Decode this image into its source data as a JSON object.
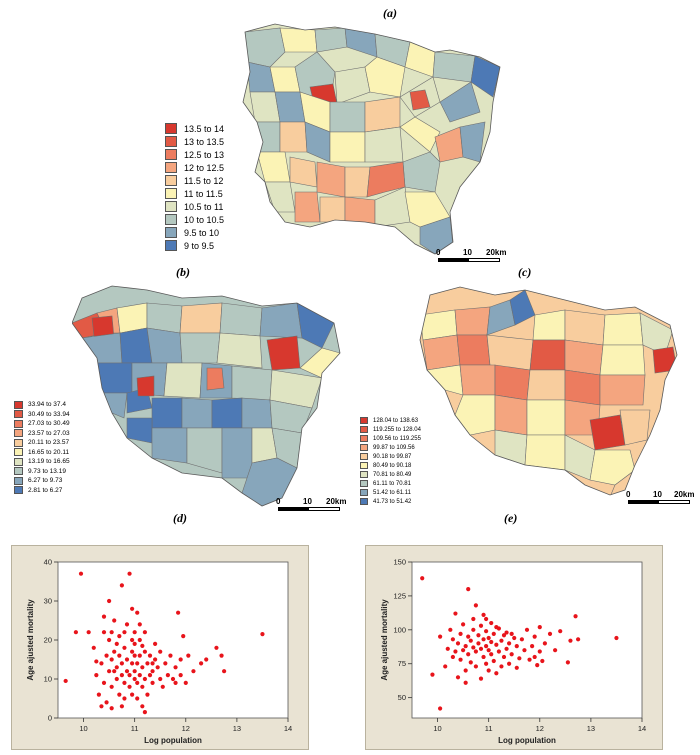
{
  "panels": [
    {
      "id": "a",
      "label": "(a)"
    },
    {
      "id": "b",
      "label": "(b)"
    },
    {
      "id": "c",
      "label": "(c)"
    },
    {
      "id": "d",
      "label": "(d)"
    },
    {
      "id": "e",
      "label": "(e)"
    }
  ],
  "maps": [
    {
      "id": "a",
      "legend": {
        "classes": [
          {
            "label": "13.5 to 14",
            "color": "#d7382e"
          },
          {
            "label": "13 to 13.5",
            "color": "#e25a45"
          },
          {
            "label": "12.5 to 13",
            "color": "#ec7c5f"
          },
          {
            "label": "12 to 12.5",
            "color": "#f4a57f"
          },
          {
            "label": "11.5 to 12",
            "color": "#f8cd9e"
          },
          {
            "label": "11 to 11.5",
            "color": "#fbf3b5"
          },
          {
            "label": "10.5 to 11",
            "color": "#dfe4c2"
          },
          {
            "label": "10 to 10.5",
            "color": "#b4c8c0"
          },
          {
            "label": "9.5 to 10",
            "color": "#87a6bb"
          },
          {
            "label": "9 to 9.5",
            "color": "#4d79b5"
          }
        ]
      },
      "scalebar": {
        "ticks": [
          "0",
          "10",
          "20km"
        ]
      }
    },
    {
      "id": "b",
      "legend": {
        "classes": [
          {
            "label": "33.94 to 37.4",
            "color": "#d7382e"
          },
          {
            "label": "30.49 to 33.94",
            "color": "#e25a45"
          },
          {
            "label": "27.03 to 30.49",
            "color": "#ec7c5f"
          },
          {
            "label": "23.57 to 27.03",
            "color": "#f4a57f"
          },
          {
            "label": "20.11 to 23.57",
            "color": "#f8cd9e"
          },
          {
            "label": "16.65 to 20.11",
            "color": "#fbf3b5"
          },
          {
            "label": "13.19 to 16.65",
            "color": "#dfe4c2"
          },
          {
            "label": "9.73 to 13.19",
            "color": "#b4c8c0"
          },
          {
            "label": "6.27 to 9.73",
            "color": "#87a6bb"
          },
          {
            "label": "2.81 to 6.27",
            "color": "#4d79b5"
          }
        ]
      },
      "scalebar": {
        "ticks": [
          "0",
          "10",
          "20km"
        ]
      }
    },
    {
      "id": "c",
      "legend": {
        "classes": [
          {
            "label": "128.04 to 138.63",
            "color": "#d7382e"
          },
          {
            "label": "119.255 to 128.04",
            "color": "#e25a45"
          },
          {
            "label": "109.56 to 119.255",
            "color": "#ec7c5f"
          },
          {
            "label": "99.87 to 109.56",
            "color": "#f4a57f"
          },
          {
            "label": "90.18 to 99.87",
            "color": "#f8cd9e"
          },
          {
            "label": "80.49 to 90.18",
            "color": "#fbf3b5"
          },
          {
            "label": "70.81 to 80.49",
            "color": "#dfe4c2"
          },
          {
            "label": "61.11 to 70.81",
            "color": "#b4c8c0"
          },
          {
            "label": "51.42 to 61.11",
            "color": "#87a6bb"
          },
          {
            "label": "41.73 to 51.42",
            "color": "#4d79b5"
          }
        ]
      },
      "scalebar": {
        "ticks": [
          "0",
          "10",
          "20km"
        ]
      }
    }
  ],
  "chart_data": [
    {
      "id": "d",
      "type": "scatter",
      "title": "",
      "xlabel": "Log population",
      "ylabel": "Age ajusted mortality",
      "xlim": [
        9.5,
        14
      ],
      "ylim": [
        0,
        40
      ],
      "xticks": [
        10,
        11,
        12,
        13,
        14
      ],
      "yticks": [
        0,
        10,
        20,
        30,
        40
      ],
      "color": "#e8141b",
      "series": [
        {
          "points": [
            [
              9.65,
              9.5
            ],
            [
              9.85,
              22
            ],
            [
              9.95,
              37
            ],
            [
              10.1,
              22
            ],
            [
              10.2,
              18
            ],
            [
              10.25,
              11
            ],
            [
              10.3,
              6
            ],
            [
              10.35,
              3
            ],
            [
              10.35,
              14
            ],
            [
              10.4,
              9
            ],
            [
              10.4,
              22
            ],
            [
              10.4,
              26
            ],
            [
              10.45,
              4
            ],
            [
              10.45,
              16
            ],
            [
              10.5,
              12
            ],
            [
              10.5,
              20
            ],
            [
              10.5,
              30
            ],
            [
              10.55,
              8
            ],
            [
              10.55,
              15
            ],
            [
              10.55,
              22
            ],
            [
              10.6,
              12
            ],
            [
              10.6,
              17
            ],
            [
              10.6,
              25
            ],
            [
              10.65,
              10
            ],
            [
              10.65,
              13
            ],
            [
              10.65,
              19
            ],
            [
              10.7,
              6
            ],
            [
              10.7,
              16
            ],
            [
              10.7,
              21
            ],
            [
              10.75,
              3
            ],
            [
              10.75,
              11
            ],
            [
              10.75,
              14
            ],
            [
              10.75,
              34
            ],
            [
              10.8,
              5
            ],
            [
              10.8,
              9
            ],
            [
              10.8,
              18
            ],
            [
              10.8,
              22
            ],
            [
              10.85,
              12
            ],
            [
              10.85,
              15
            ],
            [
              10.85,
              24
            ],
            [
              10.9,
              8
            ],
            [
              10.9,
              11
            ],
            [
              10.9,
              37
            ],
            [
              10.95,
              6
            ],
            [
              10.95,
              14
            ],
            [
              10.95,
              17
            ],
            [
              10.95,
              20
            ],
            [
              10.95,
              28
            ],
            [
              11.0,
              10
            ],
            [
              11.0,
              12
            ],
            [
              11.0,
              16
            ],
            [
              11.0,
              19
            ],
            [
              11.0,
              22
            ],
            [
              11.05,
              5
            ],
            [
              11.05,
              9
            ],
            [
              11.05,
              14
            ],
            [
              11.05,
              27
            ],
            [
              11.1,
              11
            ],
            [
              11.1,
              16
            ],
            [
              11.1,
              20
            ],
            [
              11.1,
              24
            ],
            [
              11.15,
              3
            ],
            [
              11.15,
              8
            ],
            [
              11.15,
              13
            ],
            [
              11.2,
              1.5
            ],
            [
              11.2,
              10
            ],
            [
              11.2,
              17
            ],
            [
              11.2,
              22
            ],
            [
              11.25,
              6
            ],
            [
              11.25,
              14
            ],
            [
              11.3,
              11
            ],
            [
              11.3,
              16
            ],
            [
              11.35,
              9
            ],
            [
              11.35,
              12
            ],
            [
              11.4,
              15
            ],
            [
              11.4,
              19
            ],
            [
              11.45,
              13
            ],
            [
              11.5,
              10
            ],
            [
              11.5,
              17
            ],
            [
              11.55,
              8
            ],
            [
              11.6,
              14
            ],
            [
              11.65,
              11
            ],
            [
              11.7,
              16
            ],
            [
              11.75,
              10
            ],
            [
              11.8,
              9
            ],
            [
              11.8,
              13
            ],
            [
              11.85,
              27
            ],
            [
              11.9,
              11
            ],
            [
              11.9,
              15
            ],
            [
              11.95,
              21
            ],
            [
              12.0,
              9
            ],
            [
              12.05,
              16
            ],
            [
              12.15,
              12
            ],
            [
              12.3,
              14
            ],
            [
              12.4,
              15
            ],
            [
              12.6,
              18
            ],
            [
              12.7,
              16
            ],
            [
              12.75,
              12
            ],
            [
              13.5,
              21.5
            ],
            [
              10.25,
              14.5
            ],
            [
              10.55,
              2.5
            ],
            [
              11.15,
              18.5
            ],
            [
              11.35,
              14
            ]
          ]
        }
      ]
    },
    {
      "id": "e",
      "type": "scatter",
      "title": "",
      "xlabel": "Log population",
      "ylabel": "Age ajusted mortality",
      "xlim": [
        9.5,
        14
      ],
      "ylim": [
        35,
        150
      ],
      "xticks": [
        10,
        11,
        12,
        13,
        14
      ],
      "yticks": [
        50,
        75,
        100,
        125,
        150
      ],
      "color": "#e8141b",
      "series": [
        {
          "points": [
            [
              9.7,
              138
            ],
            [
              9.9,
              67
            ],
            [
              10.05,
              42
            ],
            [
              10.05,
              95
            ],
            [
              10.15,
              73
            ],
            [
              10.2,
              86
            ],
            [
              10.25,
              100
            ],
            [
              10.3,
              80
            ],
            [
              10.35,
              84
            ],
            [
              10.35,
              112
            ],
            [
              10.4,
              65
            ],
            [
              10.4,
              90
            ],
            [
              10.45,
              78
            ],
            [
              10.45,
              97
            ],
            [
              10.5,
              85
            ],
            [
              10.5,
              104
            ],
            [
              10.55,
              70
            ],
            [
              10.55,
              88
            ],
            [
              10.6,
              82
            ],
            [
              10.6,
              95
            ],
            [
              10.6,
              130
            ],
            [
              10.65,
              76
            ],
            [
              10.65,
              92
            ],
            [
              10.7,
              87
            ],
            [
              10.7,
              100
            ],
            [
              10.7,
              108
            ],
            [
              10.75,
              73
            ],
            [
              10.75,
              84
            ],
            [
              10.8,
              90
            ],
            [
              10.8,
              96
            ],
            [
              10.85,
              64
            ],
            [
              10.85,
              86
            ],
            [
              10.85,
              103
            ],
            [
              10.9,
              80
            ],
            [
              10.9,
              93
            ],
            [
              10.9,
              111
            ],
            [
              10.95,
              75
            ],
            [
              10.95,
              88
            ],
            [
              10.95,
              99
            ],
            [
              11.0,
              70
            ],
            [
              11.0,
              85
            ],
            [
              11.0,
              94
            ],
            [
              11.05,
              82
            ],
            [
              11.05,
              91
            ],
            [
              11.05,
              105
            ],
            [
              11.1,
              77
            ],
            [
              11.1,
              97
            ],
            [
              11.15,
              68
            ],
            [
              11.15,
              89
            ],
            [
              11.2,
              84
            ],
            [
              11.2,
              101
            ],
            [
              11.25,
              73
            ],
            [
              11.25,
              92
            ],
            [
              11.3,
              80
            ],
            [
              11.3,
              96
            ],
            [
              11.35,
              86
            ],
            [
              11.35,
              98
            ],
            [
              11.4,
              75
            ],
            [
              11.4,
              90
            ],
            [
              11.45,
              82
            ],
            [
              11.5,
              94
            ],
            [
              11.55,
              72
            ],
            [
              11.55,
              88
            ],
            [
              11.6,
              79
            ],
            [
              11.65,
              93
            ],
            [
              11.7,
              85
            ],
            [
              11.75,
              100
            ],
            [
              11.8,
              78
            ],
            [
              11.85,
              88
            ],
            [
              11.9,
              95
            ],
            [
              11.95,
              74
            ],
            [
              12.0,
              84
            ],
            [
              12.0,
              102
            ],
            [
              12.05,
              77
            ],
            [
              12.1,
              90
            ],
            [
              12.2,
              97
            ],
            [
              12.3,
              85
            ],
            [
              12.4,
              99
            ],
            [
              12.55,
              76
            ],
            [
              12.6,
              92
            ],
            [
              12.7,
              110
            ],
            [
              12.75,
              93
            ],
            [
              13.5,
              94
            ],
            [
              10.3,
              93
            ],
            [
              10.55,
              61
            ],
            [
              11.15,
              102
            ],
            [
              11.9,
              80
            ],
            [
              10.75,
              118
            ],
            [
              10.95,
              108
            ],
            [
              11.45,
              97
            ]
          ]
        }
      ]
    }
  ]
}
